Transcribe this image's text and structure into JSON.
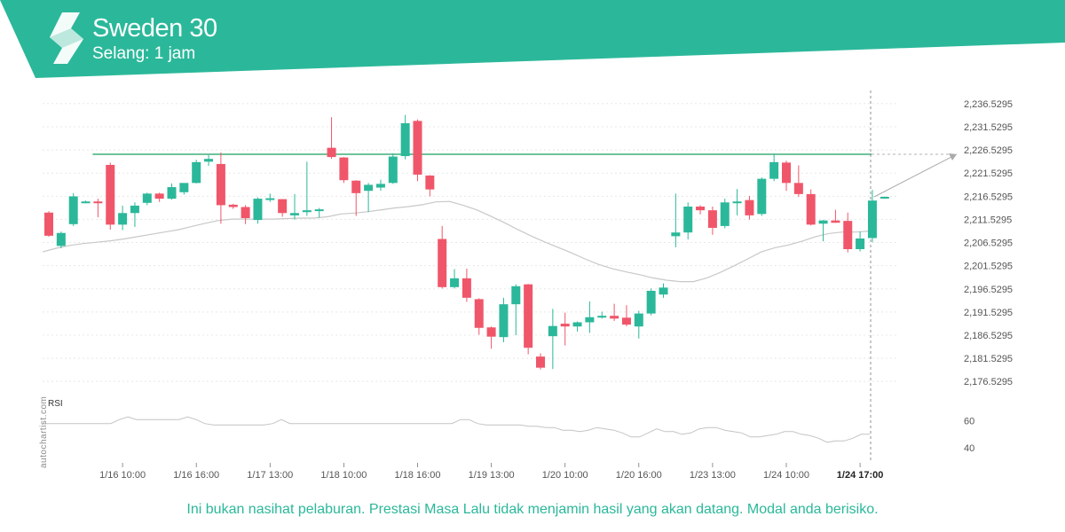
{
  "header": {
    "title": "Sweden 30",
    "subtitle": "Selang: 1 jam",
    "brand_color": "#2bb89a"
  },
  "chart_data": {
    "type": "candlestick",
    "ylim": [
      2173.5,
      2239.0
    ],
    "y_ticks": [
      "2,236.5295",
      "2,231.5295",
      "2,226.5295",
      "2,221.5295",
      "2,216.5295",
      "2,211.5295",
      "2,206.5295",
      "2,201.5295",
      "2,196.5295",
      "2,191.5295",
      "2,186.5295",
      "2,181.5295",
      "2,176.5295"
    ],
    "y_tick_values": [
      2236.5295,
      2231.5295,
      2226.5295,
      2221.5295,
      2216.5295,
      2211.5295,
      2206.5295,
      2201.5295,
      2196.5295,
      2191.5295,
      2186.5295,
      2181.5295,
      2176.5295
    ],
    "x_tick_labels": [
      {
        "index": 6,
        "label": "1/16 10:00"
      },
      {
        "index": 12,
        "label": "1/16 16:00"
      },
      {
        "index": 18,
        "label": "1/17 13:00"
      },
      {
        "index": 24,
        "label": "1/18 10:00"
      },
      {
        "index": 30,
        "label": "1/18 16:00"
      },
      {
        "index": 36,
        "label": "1/19 13:00"
      },
      {
        "index": 42,
        "label": "1/20 10:00"
      },
      {
        "index": 48,
        "label": "1/20 16:00"
      },
      {
        "index": 54,
        "label": "1/23 13:00"
      },
      {
        "index": 60,
        "label": "1/24 10:00"
      },
      {
        "index": 66,
        "label": "1/24 17:00",
        "bold": true
      }
    ],
    "candles": [
      {
        "o": 2213.0,
        "h": 2213.3,
        "l": 2207.8,
        "c": 2208.0
      },
      {
        "o": 2205.8,
        "h": 2208.9,
        "l": 2205.3,
        "c": 2208.6
      },
      {
        "o": 2210.5,
        "h": 2217.2,
        "l": 2210.1,
        "c": 2216.5
      },
      {
        "o": 2215.3,
        "h": 2215.6,
        "l": 2215.0,
        "c": 2215.4
      },
      {
        "o": 2215.4,
        "h": 2216.0,
        "l": 2212.0,
        "c": 2215.3
      },
      {
        "o": 2223.3,
        "h": 2223.8,
        "l": 2209.3,
        "c": 2210.4
      },
      {
        "o": 2210.4,
        "h": 2214.5,
        "l": 2209.2,
        "c": 2212.9
      },
      {
        "o": 2212.9,
        "h": 2215.2,
        "l": 2209.9,
        "c": 2214.5
      },
      {
        "o": 2215.1,
        "h": 2217.3,
        "l": 2214.6,
        "c": 2217.1
      },
      {
        "o": 2217.1,
        "h": 2217.3,
        "l": 2215.3,
        "c": 2216.0
      },
      {
        "o": 2216.0,
        "h": 2219.3,
        "l": 2215.8,
        "c": 2218.5
      },
      {
        "o": 2217.4,
        "h": 2219.3,
        "l": 2216.9,
        "c": 2219.4
      },
      {
        "o": 2219.4,
        "h": 2224.4,
        "l": 2219.3,
        "c": 2223.9
      },
      {
        "o": 2224.0,
        "h": 2225.5,
        "l": 2223.1,
        "c": 2224.6
      },
      {
        "o": 2223.5,
        "h": 2226.0,
        "l": 2210.6,
        "c": 2214.6
      },
      {
        "o": 2214.7,
        "h": 2214.9,
        "l": 2213.8,
        "c": 2214.2
      },
      {
        "o": 2214.2,
        "h": 2214.6,
        "l": 2210.5,
        "c": 2211.8
      },
      {
        "o": 2211.4,
        "h": 2216.3,
        "l": 2210.6,
        "c": 2216.0
      },
      {
        "o": 2215.9,
        "h": 2217.1,
        "l": 2215.3,
        "c": 2216.1
      },
      {
        "o": 2215.9,
        "h": 2215.9,
        "l": 2212.1,
        "c": 2212.9
      },
      {
        "o": 2212.4,
        "h": 2217.0,
        "l": 2211.5,
        "c": 2212.9
      },
      {
        "o": 2213.1,
        "h": 2224.0,
        "l": 2212.3,
        "c": 2213.5
      },
      {
        "o": 2213.6,
        "h": 2214.0,
        "l": 2211.9,
        "c": 2213.7
      },
      {
        "o": 2227.0,
        "h": 2233.6,
        "l": 2224.6,
        "c": 2225.0
      },
      {
        "o": 2224.9,
        "h": 2225.0,
        "l": 2219.4,
        "c": 2220.0
      },
      {
        "o": 2219.9,
        "h": 2220.0,
        "l": 2212.3,
        "c": 2217.2
      },
      {
        "o": 2217.7,
        "h": 2219.4,
        "l": 2213.1,
        "c": 2219.0
      },
      {
        "o": 2218.4,
        "h": 2220.1,
        "l": 2217.7,
        "c": 2219.2
      },
      {
        "o": 2219.4,
        "h": 2225.8,
        "l": 2219.2,
        "c": 2225.1
      },
      {
        "o": 2225.2,
        "h": 2234.1,
        "l": 2224.5,
        "c": 2232.3
      },
      {
        "o": 2232.8,
        "h": 2233.1,
        "l": 2219.8,
        "c": 2221.2
      },
      {
        "o": 2221.0,
        "h": 2221.1,
        "l": 2216.5,
        "c": 2218.0
      },
      {
        "o": 2207.3,
        "h": 2210.1,
        "l": 2196.6,
        "c": 2196.9
      },
      {
        "o": 2196.9,
        "h": 2200.8,
        "l": 2196.6,
        "c": 2198.8
      },
      {
        "o": 2198.8,
        "h": 2200.9,
        "l": 2193.7,
        "c": 2194.6
      },
      {
        "o": 2194.3,
        "h": 2194.5,
        "l": 2186.6,
        "c": 2188.1
      },
      {
        "o": 2188.2,
        "h": 2188.4,
        "l": 2183.6,
        "c": 2186.2
      },
      {
        "o": 2186.1,
        "h": 2194.6,
        "l": 2185.0,
        "c": 2193.2
      },
      {
        "o": 2193.2,
        "h": 2197.5,
        "l": 2186.5,
        "c": 2197.1
      },
      {
        "o": 2197.5,
        "h": 2197.6,
        "l": 2182.4,
        "c": 2183.8
      },
      {
        "o": 2181.9,
        "h": 2182.6,
        "l": 2179.1,
        "c": 2179.5
      },
      {
        "o": 2186.3,
        "h": 2192.2,
        "l": 2179.2,
        "c": 2188.5
      },
      {
        "o": 2189.0,
        "h": 2191.4,
        "l": 2184.3,
        "c": 2188.4
      },
      {
        "o": 2188.4,
        "h": 2189.5,
        "l": 2187.3,
        "c": 2189.3
      },
      {
        "o": 2189.3,
        "h": 2193.8,
        "l": 2187.0,
        "c": 2190.4
      },
      {
        "o": 2190.4,
        "h": 2191.6,
        "l": 2190.1,
        "c": 2190.7
      },
      {
        "o": 2190.7,
        "h": 2193.3,
        "l": 2189.6,
        "c": 2190.1
      },
      {
        "o": 2190.3,
        "h": 2193.0,
        "l": 2188.4,
        "c": 2188.8
      },
      {
        "o": 2188.4,
        "h": 2191.8,
        "l": 2185.8,
        "c": 2191.2
      },
      {
        "o": 2191.2,
        "h": 2196.6,
        "l": 2190.8,
        "c": 2196.1
      },
      {
        "o": 2195.3,
        "h": 2197.7,
        "l": 2194.6,
        "c": 2196.8
      },
      {
        "o": 2207.9,
        "h": 2217.1,
        "l": 2205.5,
        "c": 2208.7
      },
      {
        "o": 2208.7,
        "h": 2215.2,
        "l": 2207.2,
        "c": 2214.3
      },
      {
        "o": 2214.3,
        "h": 2214.6,
        "l": 2212.6,
        "c": 2213.5
      },
      {
        "o": 2213.5,
        "h": 2214.3,
        "l": 2208.2,
        "c": 2209.7
      },
      {
        "o": 2210.1,
        "h": 2216.0,
        "l": 2209.6,
        "c": 2215.2
      },
      {
        "o": 2215.1,
        "h": 2218.1,
        "l": 2212.4,
        "c": 2215.4
      },
      {
        "o": 2215.7,
        "h": 2216.6,
        "l": 2211.5,
        "c": 2212.4
      },
      {
        "o": 2212.7,
        "h": 2220.6,
        "l": 2212.3,
        "c": 2220.3
      },
      {
        "o": 2220.3,
        "h": 2225.7,
        "l": 2219.8,
        "c": 2223.9
      },
      {
        "o": 2223.8,
        "h": 2224.2,
        "l": 2217.7,
        "c": 2219.4
      },
      {
        "o": 2219.4,
        "h": 2223.2,
        "l": 2216.4,
        "c": 2217.0
      },
      {
        "o": 2217.0,
        "h": 2218.0,
        "l": 2210.2,
        "c": 2210.4
      },
      {
        "o": 2210.6,
        "h": 2211.4,
        "l": 2206.8,
        "c": 2211.3
      },
      {
        "o": 2211.3,
        "h": 2213.6,
        "l": 2210.8,
        "c": 2210.8
      },
      {
        "o": 2211.2,
        "h": 2213.0,
        "l": 2204.4,
        "c": 2205.1
      },
      {
        "o": 2205.1,
        "h": 2208.9,
        "l": 2204.6,
        "c": 2207.4
      },
      {
        "o": 2207.5,
        "h": 2217.9,
        "l": 2206.6,
        "c": 2215.6
      },
      {
        "o": 2216.3,
        "h": 2216.5,
        "l": 2216.1,
        "c": 2216.4
      }
    ],
    "moving_average": [
      2204.5,
      2205.3,
      2205.9,
      2206.3,
      2206.6,
      2206.9,
      2207.3,
      2207.8,
      2208.3,
      2208.8,
      2209.3,
      2210.0,
      2210.7,
      2211.3,
      2211.6,
      2211.6,
      2211.6,
      2211.6,
      2211.7,
      2211.8,
      2211.8,
      2212.1,
      2212.7,
      2212.9,
      2213.2,
      2213.6,
      2214.0,
      2214.3,
      2214.7,
      2215.3,
      2215.4,
      2214.6,
      2213.6,
      2212.3,
      2210.9,
      2209.4,
      2208.0,
      2206.7,
      2205.5,
      2204.3,
      2203.0,
      2201.8,
      2200.9,
      2200.2,
      2199.6,
      2198.9,
      2198.4,
      2198.1,
      2198.1,
      2198.9,
      2200.1,
      2201.5,
      2203.0,
      2204.5,
      2205.4,
      2206.0,
      2206.8,
      2207.8,
      2208.5,
      2208.8,
      2208.8,
      2209.0
    ]
  },
  "resistance": {
    "value": 2225.6,
    "start_index": 4
  },
  "forecast": {
    "target_value": 2225.6
  },
  "rsi": {
    "label": "RSI",
    "ticks": [
      60,
      40
    ],
    "range": [
      30,
      75
    ],
    "values": [
      58,
      58,
      58,
      58,
      58,
      58,
      58,
      58,
      58,
      61,
      63,
      61,
      61,
      61,
      61,
      61,
      61,
      63,
      61,
      58,
      57,
      57,
      57,
      57,
      57,
      57,
      57,
      58,
      61,
      58,
      58,
      58,
      58,
      58,
      58,
      58,
      58,
      58,
      58,
      58,
      58,
      58,
      58,
      58,
      58,
      58,
      58,
      58,
      58,
      61,
      61,
      58,
      57,
      57,
      57,
      57,
      57,
      56,
      56,
      55,
      55,
      53,
      53,
      52,
      53,
      55,
      54,
      53,
      51,
      48,
      48,
      51,
      54,
      52,
      52,
      50,
      51,
      54,
      55,
      55,
      53,
      52,
      51,
      48,
      48,
      49,
      50,
      52,
      52,
      50,
      49,
      47,
      44,
      45,
      45,
      47,
      50,
      50
    ]
  },
  "footer": {
    "disclaimer": "Ini bukan nasihat pelaburan. Prestasi Masa Lalu tidak menjamin hasil yang akan datang. Modal anda berisiko.",
    "watermark": "autochartist.com"
  },
  "colors": {
    "bull": "#2bb89a",
    "bear": "#f0566a",
    "ma_line": "#c8c8c8",
    "resistance": "#6fc39a",
    "grid": "#e8e8e8",
    "axis_text": "#555555"
  }
}
